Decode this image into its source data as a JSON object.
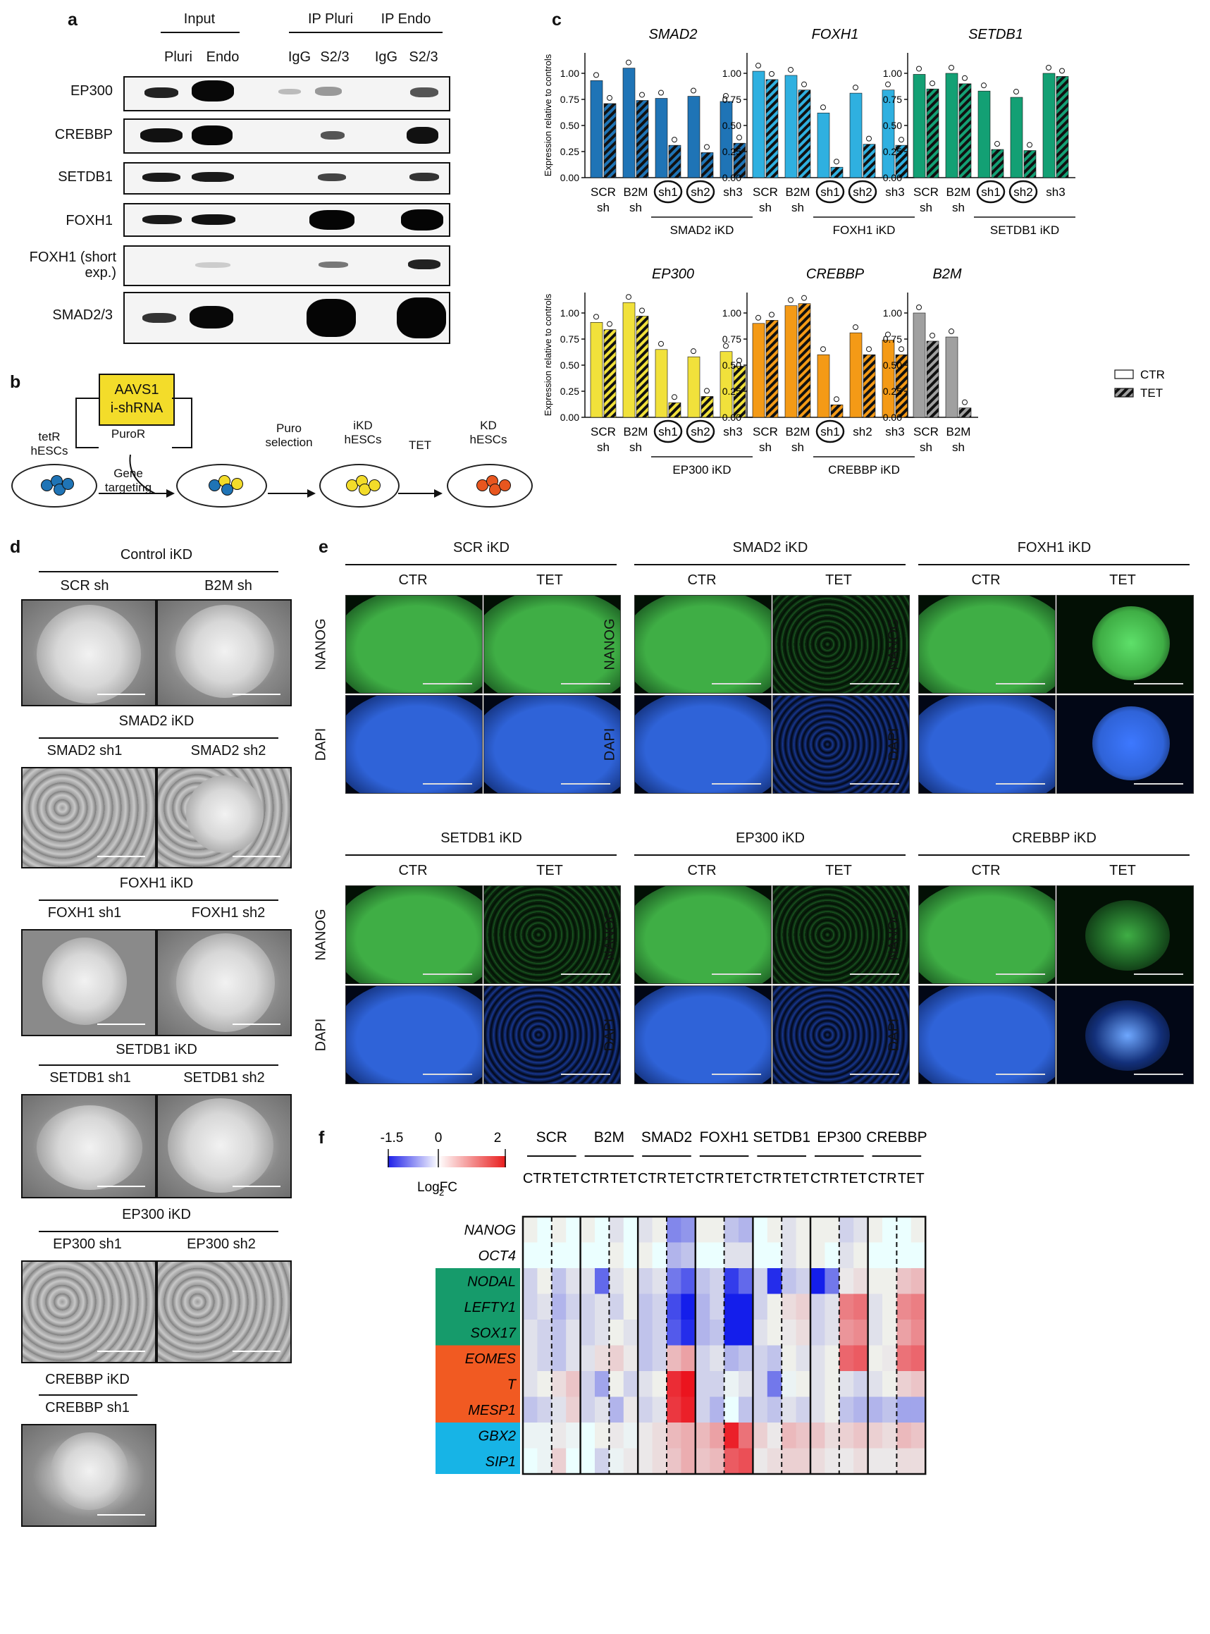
{
  "panel_labels": {
    "a": "a",
    "b": "b",
    "c": "c",
    "d": "d",
    "e": "e",
    "f": "f"
  },
  "panel_a": {
    "headers": {
      "input": "Input",
      "ip_pluri": "IP Pluri",
      "ip_endo": "IP Endo"
    },
    "lanes": [
      "Pluri",
      "Endo",
      "IgG",
      "S2/3",
      "IgG",
      "S2/3"
    ],
    "rows": [
      "EP300",
      "CREBBP",
      "SETDB1",
      "FOXH1",
      "FOXH1 (short exp.)",
      "SMAD2/3"
    ]
  },
  "panel_b": {
    "box": [
      "AAVS1",
      "i-shRNA"
    ],
    "labels": {
      "tetr": [
        "tetR",
        "hESCs"
      ],
      "puror": "PuroR",
      "gene_targeting": [
        "Gene",
        "targeting"
      ],
      "puro": [
        "Puro",
        "selection"
      ],
      "ikd": [
        "iKD",
        "hESCs"
      ],
      "tet": "TET",
      "kd": [
        "KD",
        "hESCs"
      ]
    }
  },
  "legend": {
    "ctr": "CTR",
    "tet": "TET"
  },
  "chart_data": [
    {
      "type": "bar",
      "title": "SMAD2",
      "ylabel": "Expression relative to controls",
      "ylim": [
        0,
        1.2
      ],
      "yticks": [
        "0.00",
        "0.25",
        "0.50",
        "0.75",
        "1.00"
      ],
      "color": "#1f74b6",
      "categories": [
        "SCR sh",
        "B2M sh",
        "sh1",
        "sh2",
        "sh3"
      ],
      "circled": [
        false,
        false,
        true,
        true,
        false
      ],
      "group_label": "SMAD2 iKD",
      "series": [
        {
          "name": "CTR",
          "values": [
            0.93,
            1.05,
            0.76,
            0.78,
            0.73
          ]
        },
        {
          "name": "TET",
          "values": [
            0.71,
            0.74,
            0.31,
            0.24,
            0.33
          ]
        }
      ]
    },
    {
      "type": "bar",
      "title": "FOXH1",
      "ylim": [
        0,
        1.2
      ],
      "yticks": [
        "0.00",
        "0.25",
        "0.50",
        "0.75",
        "1.00"
      ],
      "color": "#2fb0e0",
      "categories": [
        "SCR sh",
        "B2M sh",
        "sh1",
        "sh2",
        "sh3"
      ],
      "circled": [
        false,
        false,
        true,
        true,
        false
      ],
      "group_label": "FOXH1 iKD",
      "series": [
        {
          "name": "CTR",
          "values": [
            1.02,
            0.98,
            0.62,
            0.81,
            0.84
          ]
        },
        {
          "name": "TET",
          "values": [
            0.94,
            0.84,
            0.1,
            0.32,
            0.31
          ]
        }
      ]
    },
    {
      "type": "bar",
      "title": "SETDB1",
      "ylim": [
        0,
        1.2
      ],
      "yticks": [
        "0.00",
        "0.25",
        "0.50",
        "0.75",
        "1.00"
      ],
      "color": "#13a074",
      "categories": [
        "SCR sh",
        "B2M sh",
        "sh1",
        "sh2",
        "sh3"
      ],
      "circled": [
        false,
        false,
        true,
        true,
        false
      ],
      "group_label": "SETDB1 iKD",
      "series": [
        {
          "name": "CTR",
          "values": [
            0.99,
            1.0,
            0.83,
            0.77,
            1.0
          ]
        },
        {
          "name": "TET",
          "values": [
            0.85,
            0.9,
            0.27,
            0.26,
            0.97
          ]
        }
      ]
    },
    {
      "type": "bar",
      "title": "EP300",
      "ylabel": "Expression relative to controls",
      "ylim": [
        0,
        1.2
      ],
      "yticks": [
        "0.00",
        "0.25",
        "0.50",
        "0.75",
        "1.00"
      ],
      "color": "#f1e13b",
      "categories": [
        "SCR sh",
        "B2M sh",
        "sh1",
        "sh2",
        "sh3"
      ],
      "circled": [
        false,
        false,
        true,
        true,
        false
      ],
      "group_label": "EP300 iKD",
      "series": [
        {
          "name": "CTR",
          "values": [
            0.91,
            1.1,
            0.65,
            0.58,
            0.63
          ]
        },
        {
          "name": "TET",
          "values": [
            0.84,
            0.97,
            0.14,
            0.2,
            0.49
          ]
        }
      ]
    },
    {
      "type": "bar",
      "title": "CREBBP",
      "ylim": [
        0,
        1.2
      ],
      "yticks": [
        "0.00",
        "0.25",
        "0.50",
        "0.75",
        "1.00"
      ],
      "color": "#f49a16",
      "categories": [
        "SCR sh",
        "B2M sh",
        "sh1",
        "sh2",
        "sh3"
      ],
      "circled": [
        false,
        false,
        true,
        false,
        false
      ],
      "group_label": "CREBBP iKD",
      "series": [
        {
          "name": "CTR",
          "values": [
            0.9,
            1.07,
            0.6,
            0.81,
            0.74
          ]
        },
        {
          "name": "TET",
          "values": [
            0.93,
            1.09,
            0.12,
            0.6,
            0.6
          ]
        }
      ]
    },
    {
      "type": "bar",
      "title": "B2M",
      "ylim": [
        0,
        1.2
      ],
      "yticks": [
        "0.00",
        "0.25",
        "0.50",
        "0.75",
        "1.00"
      ],
      "color": "#a0a0a0",
      "categories": [
        "SCR sh",
        "B2M sh"
      ],
      "circled": [
        false,
        false
      ],
      "group_label": "",
      "series": [
        {
          "name": "CTR",
          "values": [
            1.0,
            0.77
          ]
        },
        {
          "name": "TET",
          "values": [
            0.73,
            0.09
          ]
        }
      ]
    },
    {
      "type": "heatmap",
      "colorbar_ticks": [
        "-1.5",
        "0",
        "2"
      ],
      "colorbar_label": "Log2FC",
      "vmin": -1.5,
      "vmax": 2,
      "groups": [
        "SCR",
        "B2M",
        "SMAD2",
        "FOXH1",
        "SETDB1",
        "EP300",
        "CREBBP"
      ],
      "conditions": [
        "CTR",
        "TET"
      ],
      "genes": [
        "NANOG",
        "OCT4",
        "NODAL",
        "LEFTY1",
        "SOX17",
        "EOMES",
        "T",
        "MESP1",
        "GBX2",
        "SIP1"
      ],
      "gene_groups": [
        {
          "genes": [
            "NANOG",
            "OCT4"
          ],
          "color": "#ffffff"
        },
        {
          "genes": [
            "NODAL",
            "LEFTY1",
            "SOX17"
          ],
          "color": "#169b6b"
        },
        {
          "genes": [
            "EOMES",
            "T",
            "MESP1"
          ],
          "color": "#f15a22"
        },
        {
          "genes": [
            "GBX2",
            "SIP1"
          ],
          "color": "#17b4e6"
        }
      ],
      "rows": [
        [
          -0.1,
          0.0,
          -0.1,
          0.0,
          -0.1,
          0.0,
          -0.2,
          0.0,
          -0.2,
          -0.1,
          -0.8,
          -0.7,
          -0.1,
          -0.1,
          -0.4,
          -0.5,
          0.0,
          -0.1,
          -0.2,
          -0.1,
          -0.1,
          -0.1,
          -0.3,
          -0.2,
          -0.1,
          0.0,
          0.0,
          -0.1
        ],
        [
          0.0,
          0.0,
          0.0,
          0.0,
          0.0,
          0.0,
          -0.1,
          0.0,
          -0.1,
          0.0,
          -0.5,
          -0.4,
          0.0,
          0.0,
          -0.2,
          -0.2,
          0.0,
          0.0,
          -0.2,
          -0.1,
          -0.1,
          0.0,
          -0.2,
          -0.1,
          0.0,
          0.0,
          0.0,
          0.0
        ],
        [
          -0.3,
          -0.1,
          -0.4,
          -0.2,
          -0.2,
          -1.0,
          -0.2,
          -0.1,
          -0.3,
          -0.2,
          -0.9,
          -1.1,
          -0.4,
          -0.3,
          -1.3,
          -1.0,
          -0.3,
          -1.4,
          -0.4,
          -0.3,
          -1.5,
          -0.9,
          0.2,
          0.3,
          -0.1,
          -0.1,
          0.5,
          0.6
        ],
        [
          -0.3,
          -0.2,
          -0.5,
          -0.3,
          -0.3,
          -0.2,
          -0.3,
          -0.1,
          -0.4,
          -0.3,
          -1.2,
          -1.5,
          -0.5,
          -0.3,
          -1.5,
          -1.5,
          -0.3,
          -0.1,
          0.3,
          0.4,
          -0.3,
          -0.2,
          1.1,
          1.2,
          -0.2,
          -0.1,
          1.0,
          1.1
        ],
        [
          -0.2,
          -0.3,
          -0.4,
          -0.2,
          -0.3,
          -0.2,
          -0.1,
          -0.2,
          -0.4,
          -0.3,
          -1.1,
          -1.4,
          -0.5,
          -0.4,
          -1.5,
          -1.5,
          -0.2,
          -0.1,
          0.2,
          0.3,
          -0.3,
          -0.2,
          0.9,
          1.0,
          -0.2,
          -0.1,
          0.8,
          1.0
        ],
        [
          -0.2,
          -0.3,
          -0.4,
          -0.2,
          -0.2,
          0.3,
          0.4,
          0.2,
          -0.4,
          -0.3,
          0.6,
          0.8,
          -0.3,
          -0.2,
          -0.5,
          -0.4,
          -0.3,
          -0.4,
          -0.1,
          -0.2,
          -0.2,
          -0.1,
          1.3,
          1.4,
          -0.1,
          0.2,
          1.2,
          1.3
        ],
        [
          -0.2,
          -0.1,
          0.3,
          0.5,
          -0.3,
          -0.6,
          -0.1,
          -0.3,
          -0.2,
          -0.1,
          1.8,
          2.0,
          -0.3,
          -0.3,
          0.1,
          -0.2,
          -0.3,
          -0.9,
          0.1,
          -0.1,
          -0.2,
          -0.1,
          -0.2,
          -0.3,
          -0.2,
          -0.1,
          0.4,
          0.5
        ],
        [
          -0.4,
          -0.3,
          -0.2,
          0.4,
          -0.3,
          -0.2,
          -0.5,
          0.2,
          -0.3,
          -0.2,
          1.7,
          1.9,
          -0.3,
          -0.5,
          0.0,
          -0.4,
          -0.3,
          -0.4,
          -0.2,
          -0.3,
          -0.2,
          -0.1,
          -0.4,
          -0.5,
          -0.5,
          -0.4,
          -0.6,
          -0.6
        ],
        [
          0.1,
          0.1,
          0.2,
          0.1,
          0.0,
          -0.1,
          0.2,
          0.1,
          0.2,
          0.3,
          0.6,
          0.7,
          0.6,
          0.8,
          1.9,
          1.2,
          0.4,
          0.2,
          0.6,
          0.5,
          0.5,
          0.3,
          0.4,
          0.5,
          0.4,
          0.3,
          0.6,
          0.5
        ],
        [
          0.0,
          0.1,
          0.4,
          0.0,
          0.0,
          -0.3,
          0.1,
          0.2,
          0.2,
          0.3,
          0.5,
          0.7,
          0.5,
          0.6,
          1.4,
          1.5,
          0.2,
          0.3,
          0.4,
          0.4,
          0.3,
          0.2,
          0.2,
          0.3,
          0.2,
          0.2,
          0.3,
          0.3
        ]
      ]
    }
  ],
  "panel_d": {
    "sections": [
      {
        "title": "Control iKD",
        "items": [
          "SCR sh",
          "B2M sh"
        ]
      },
      {
        "title": "SMAD2 iKD",
        "items": [
          "SMAD2 sh1",
          "SMAD2  sh2"
        ]
      },
      {
        "title": "FOXH1 iKD",
        "items": [
          "FOXH1 sh1",
          "FOXH1 sh2"
        ]
      },
      {
        "title": "SETDB1 iKD",
        "items": [
          "SETDB1 sh1",
          "SETDB1 sh2"
        ]
      },
      {
        "title": "EP300 iKD",
        "items": [
          "EP300 sh1",
          "EP300 sh2"
        ]
      },
      {
        "title": "CREBBP iKD",
        "items": [
          "CREBBP sh1"
        ]
      }
    ]
  },
  "panel_e": {
    "groups": [
      "SCR iKD",
      "SMAD2 iKD",
      "FOXH1 iKD",
      "SETDB1 iKD",
      "EP300 iKD",
      "CREBBP iKD"
    ],
    "conditions": [
      "CTR",
      "TET"
    ],
    "stains": [
      "NANOG",
      "DAPI"
    ]
  }
}
